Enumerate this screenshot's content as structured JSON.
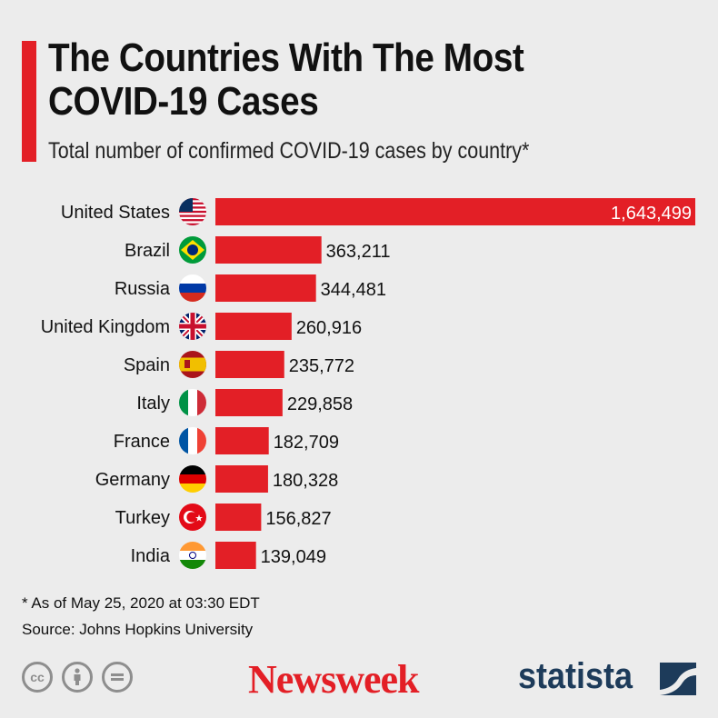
{
  "header": {
    "title": "The Countries With The Most COVID-19 Cases",
    "subtitle": "Total number of confirmed COVID-19 cases by country*"
  },
  "chart_data": {
    "type": "bar",
    "orientation": "horizontal",
    "title": "The Countries With The Most COVID-19 Cases",
    "subtitle": "Total number of confirmed COVID-19 cases by country*",
    "categories": [
      "United States",
      "Brazil",
      "Russia",
      "United Kingdom",
      "Spain",
      "Italy",
      "France",
      "Germany",
      "Turkey",
      "India"
    ],
    "values": [
      1643499,
      363211,
      344481,
      260916,
      235772,
      229858,
      182709,
      180328,
      156827,
      139049
    ],
    "value_labels": [
      "1,643,499",
      "363,211",
      "344,481",
      "260,916",
      "235,772",
      "229,858",
      "182,709",
      "180,328",
      "156,827",
      "139,049"
    ],
    "flags": [
      "us-flag-icon",
      "brazil-flag-icon",
      "russia-flag-icon",
      "uk-flag-icon",
      "spain-flag-icon",
      "italy-flag-icon",
      "france-flag-icon",
      "germany-flag-icon",
      "turkey-flag-icon",
      "india-flag-icon"
    ],
    "xlim": [
      0,
      1643499
    ],
    "grid": false,
    "legend": "none",
    "bar_color": "#e31f26"
  },
  "footer": {
    "note": "* As of May 25, 2020 at 03:30 EDT",
    "source": "Source: Johns Hopkins University",
    "newsweek_logo": "Newsweek",
    "statista_logo": "statista"
  },
  "colors": {
    "accent": "#e31f26",
    "background": "#ececec",
    "statista_blue": "#1d3b5a"
  }
}
